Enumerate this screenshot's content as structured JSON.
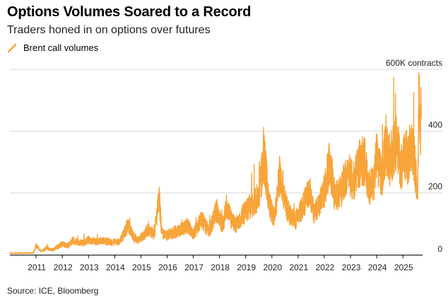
{
  "title": "Options Volumes Soared to a Record",
  "subtitle": "Traders honed in on options over futures",
  "legend_label": "Brent call volumes",
  "source": "Source: ICE, Bloomberg",
  "colors": {
    "series": "#f7a43a",
    "grid": "#d9d9d9",
    "axis": "#000000",
    "text": "#222222"
  },
  "chart_data": {
    "type": "line",
    "title": "Options Volumes Soared to a Record",
    "subtitle": "Traders honed in on options over futures",
    "y_unit_label": "600K contracts",
    "ylim": [
      0,
      600
    ],
    "yticks": [
      0,
      200,
      400,
      600
    ],
    "y_tick_labels": [
      "0",
      "200",
      "400",
      "600K contracts"
    ],
    "y_axis_position": "right",
    "xlim": [
      2010.0,
      2025.75
    ],
    "x_tick_labels": [
      "2011",
      "2012",
      "2013",
      "2014",
      "2015",
      "2016",
      "2017",
      "2018",
      "2019",
      "2020",
      "2021",
      "2022",
      "2023",
      "2024",
      "2025"
    ],
    "x_tick_values": [
      2011,
      2012,
      2013,
      2014,
      2015,
      2016,
      2017,
      2018,
      2019,
      2020,
      2021,
      2022,
      2023,
      2024,
      2025
    ],
    "grid": "horizontal",
    "legend_position": "top-left",
    "series": [
      {
        "name": "Brent call volumes",
        "sampling": "approximate trace read from the chart",
        "x": [
          2010.0,
          2010.5,
          2010.9,
          2011.0,
          2011.2,
          2011.4,
          2011.6,
          2011.8,
          2012.0,
          2012.2,
          2012.4,
          2012.6,
          2012.8,
          2013.0,
          2013.3,
          2013.6,
          2013.9,
          2014.2,
          2014.5,
          2014.75,
          2014.9,
          2015.1,
          2015.3,
          2015.5,
          2015.7,
          2015.8,
          2015.95,
          2016.2,
          2016.5,
          2016.8,
          2017.0,
          2017.3,
          2017.6,
          2017.9,
          2018.1,
          2018.3,
          2018.45,
          2018.6,
          2018.9,
          2019.2,
          2019.5,
          2019.7,
          2019.9,
          2020.1,
          2020.3,
          2020.6,
          2020.9,
          2021.2,
          2021.45,
          2021.6,
          2021.9,
          2022.0,
          2022.2,
          2022.4,
          2022.6,
          2022.9,
          2023.1,
          2023.3,
          2023.5,
          2023.7,
          2023.9,
          2024.0,
          2024.1,
          2024.2,
          2024.35,
          2024.5,
          2024.65,
          2024.8,
          2024.9,
          2025.05,
          2025.2,
          2025.3,
          2025.4,
          2025.5,
          2025.55,
          2025.58,
          2025.62,
          2025.66,
          2025.7
        ],
        "values": [
          5,
          5,
          6,
          30,
          10,
          22,
          15,
          25,
          35,
          28,
          45,
          40,
          38,
          48,
          42,
          45,
          40,
          42,
          95,
          55,
          48,
          60,
          85,
          65,
          180,
          70,
          60,
          70,
          80,
          95,
          65,
          115,
          75,
          145,
          90,
          160,
          110,
          95,
          130,
          160,
          190,
          320,
          160,
          120,
          265,
          140,
          110,
          160,
          205,
          130,
          180,
          210,
          300,
          190,
          200,
          270,
          230,
          290,
          310,
          220,
          235,
          340,
          280,
          250,
          360,
          300,
          340,
          380,
          270,
          330,
          310,
          365,
          330,
          250,
          180,
          300,
          550,
          400,
          440
        ]
      }
    ]
  }
}
